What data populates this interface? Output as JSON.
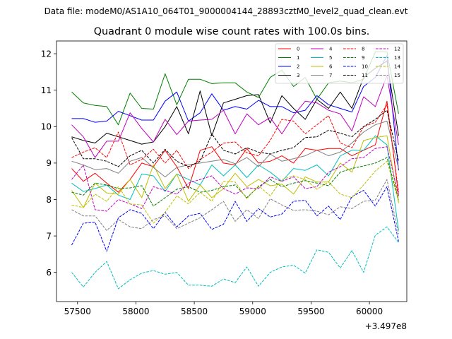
{
  "figure": {
    "suptitle": "Data file: modeM0/AS1A10_064T01_9000004144_28893cztM0_level2_quad_clean.evt"
  },
  "chart_data": {
    "type": "line",
    "title": "Quadrant 0 module wise count rates with 100.0s bins.",
    "xlabel": "",
    "ylabel": "",
    "x_offset_label": "+3.497e8",
    "xlim": [
      57320,
      60320
    ],
    "ylim": [
      5.2,
      12.35
    ],
    "xticks": [
      57500,
      58000,
      58500,
      59000,
      59500,
      60000
    ],
    "yticks": [
      6,
      7,
      8,
      9,
      10,
      11,
      12
    ],
    "grid": false,
    "legend_position": "upper-right",
    "legend_columns": 4,
    "x": [
      57450,
      57550,
      57650,
      57750,
      57850,
      57950,
      58050,
      58150,
      58250,
      58350,
      58450,
      58550,
      58650,
      58750,
      58850,
      58950,
      59050,
      59150,
      59250,
      59350,
      59450,
      59550,
      59650,
      59750,
      59850,
      59950,
      60050,
      60150,
      60250
    ],
    "series": [
      {
        "name": "0",
        "color": "#ff0000",
        "dash": "solid",
        "values": [
          8.85,
          8.5,
          8.72,
          8.45,
          8.2,
          8.55,
          9.0,
          8.9,
          9.35,
          8.9,
          8.3,
          9.35,
          9.45,
          9.0,
          8.95,
          9.4,
          9.0,
          9.05,
          9.2,
          9.0,
          9.4,
          9.35,
          9.4,
          9.4,
          9.2,
          9.35,
          9.5,
          10.7,
          8.1
        ]
      },
      {
        "name": "1",
        "color": "#008000",
        "dash": "solid",
        "values": [
          10.95,
          10.65,
          10.58,
          10.55,
          10.05,
          10.92,
          10.5,
          10.48,
          11.45,
          10.6,
          11.3,
          11.3,
          11.18,
          11.2,
          11.2,
          10.95,
          10.8,
          11.35,
          11.55,
          11.1,
          11.35,
          10.75,
          11.2,
          11.25,
          11.2,
          11.3,
          12.05,
          12.05,
          10.35
        ]
      },
      {
        "name": "2",
        "color": "#0000ff",
        "dash": "solid",
        "values": [
          10.22,
          10.22,
          10.12,
          10.15,
          10.42,
          10.3,
          10.18,
          10.18,
          10.7,
          10.95,
          10.15,
          10.38,
          10.9,
          10.45,
          10.55,
          10.48,
          10.72,
          10.55,
          10.55,
          10.38,
          10.45,
          10.85,
          10.6,
          10.5,
          10.4,
          11.1,
          11.35,
          11.95,
          8.8
        ]
      },
      {
        "name": "3",
        "color": "#000000",
        "dash": "solid",
        "values": [
          9.72,
          9.62,
          9.55,
          9.82,
          9.72,
          9.62,
          9.52,
          9.58,
          10.0,
          10.55,
          9.8,
          10.98,
          9.75,
          10.65,
          10.75,
          10.85,
          10.88,
          10.1,
          10.85,
          10.5,
          10.2,
          10.75,
          10.5,
          10.95,
          10.5,
          11.35,
          11.6,
          11.8,
          9.75
        ]
      },
      {
        "name": "4",
        "color": "#bf00bf",
        "dash": "solid",
        "values": [
          10.05,
          9.72,
          9.15,
          9.6,
          9.6,
          10.38,
          9.95,
          9.58,
          10.2,
          9.78,
          10.15,
          10.18,
          10.2,
          10.45,
          9.8,
          10.35,
          10.05,
          10.25,
          9.8,
          10.3,
          10.7,
          10.65,
          10.45,
          10.35,
          9.88,
          10.82,
          10.55,
          11.4,
          9.5
        ]
      },
      {
        "name": "5",
        "color": "#00bfbf",
        "dash": "solid",
        "values": [
          8.45,
          8.22,
          8.3,
          8.4,
          8.12,
          8.0,
          8.7,
          8.65,
          8.22,
          8.7,
          8.55,
          8.4,
          8.95,
          8.65,
          8.95,
          8.6,
          8.95,
          8.75,
          8.5,
          8.85,
          8.8,
          8.95,
          8.65,
          9.2,
          9.35,
          9.35,
          9.75,
          9.5,
          7.15
        ]
      },
      {
        "name": "6",
        "color": "#bfbf00",
        "dash": "solid",
        "values": [
          8.25,
          7.78,
          8.45,
          8.18,
          8.15,
          8.55,
          8.05,
          8.95,
          8.3,
          8.7,
          7.95,
          8.4,
          8.05,
          8.3,
          8.72,
          8.35,
          8.55,
          8.38,
          8.42,
          8.15,
          8.62,
          8.48,
          8.48,
          9.0,
          8.75,
          9.62,
          9.7,
          9.75,
          7.9
        ]
      },
      {
        "name": "7",
        "color": "#808080",
        "dash": "solid",
        "values": [
          9.05,
          8.95,
          8.82,
          8.85,
          8.72,
          9.05,
          9.15,
          8.88,
          8.62,
          8.88,
          8.95,
          9.0,
          9.05,
          9.1,
          8.98,
          9.15,
          8.9,
          9.25,
          9.05,
          9.12,
          9.2,
          9.35,
          9.2,
          9.3,
          9.55,
          9.85,
          10.05,
          10.15,
          8.85
        ]
      },
      {
        "name": "8",
        "color": "#ff0000",
        "dash": "dashed",
        "values": [
          9.15,
          9.3,
          9.42,
          9.15,
          9.85,
          8.95,
          9.1,
          9.38,
          9.0,
          9.35,
          8.85,
          9.1,
          9.3,
          9.55,
          9.58,
          9.28,
          9.2,
          9.62,
          10.2,
          10.15,
          9.8,
          10.05,
          10.3,
          9.55,
          9.42,
          10.0,
          10.12,
          10.6,
          8.2
        ]
      },
      {
        "name": "9",
        "color": "#008000",
        "dash": "dashed",
        "values": [
          8.2,
          8.12,
          8.45,
          8.4,
          8.3,
          8.32,
          8.38,
          7.82,
          8.05,
          8.28,
          8.35,
          8.2,
          8.25,
          8.35,
          8.4,
          8.05,
          8.35,
          8.55,
          8.35,
          8.45,
          8.52,
          8.45,
          8.38,
          8.75,
          8.85,
          8.92,
          9.0,
          9.15,
          8.0
        ]
      },
      {
        "name": "10",
        "color": "#0000ff",
        "dash": "dashed",
        "values": [
          6.75,
          7.35,
          7.38,
          6.58,
          7.5,
          7.72,
          7.62,
          7.2,
          7.65,
          7.25,
          7.55,
          7.62,
          7.18,
          7.32,
          7.95,
          7.4,
          7.75,
          7.52,
          7.6,
          7.95,
          7.98,
          7.55,
          7.82,
          7.45,
          8.08,
          8.25,
          7.82,
          8.35,
          6.85
        ]
      },
      {
        "name": "11",
        "color": "#000000",
        "dash": "dashed",
        "values": [
          9.7,
          9.12,
          9.12,
          9.05,
          8.9,
          9.2,
          9.35,
          9.0,
          9.38,
          9.05,
          8.9,
          9.05,
          9.8,
          9.35,
          9.25,
          9.42,
          9.3,
          9.25,
          9.35,
          9.42,
          9.7,
          9.72,
          9.9,
          9.82,
          9.72,
          10.0,
          10.2,
          10.45,
          9.05
        ]
      },
      {
        "name": "12",
        "color": "#bf00bf",
        "dash": "dashed",
        "values": [
          8.55,
          8.95,
          7.72,
          7.68,
          8.0,
          7.88,
          7.75,
          8.35,
          8.25,
          8.15,
          8.45,
          8.55,
          8.65,
          8.3,
          8.15,
          8.32,
          8.3,
          8.62,
          8.5,
          8.62,
          8.3,
          8.35,
          8.75,
          8.9,
          9.12,
          9.15,
          9.4,
          9.45,
          8.1
        ]
      },
      {
        "name": "13",
        "color": "#00bfbf",
        "dash": "dashed",
        "values": [
          6.0,
          5.6,
          6.0,
          6.3,
          5.55,
          5.8,
          5.98,
          6.05,
          5.95,
          6.0,
          5.65,
          5.65,
          5.62,
          5.82,
          5.72,
          6.15,
          5.62,
          6.0,
          6.15,
          6.2,
          5.98,
          6.62,
          6.55,
          6.12,
          6.6,
          6.0,
          7.02,
          7.25,
          6.82
        ]
      },
      {
        "name": "14",
        "color": "#bfbf00",
        "dash": "dashed",
        "values": [
          7.85,
          7.78,
          8.15,
          7.95,
          8.35,
          7.88,
          7.85,
          7.35,
          7.65,
          8.1,
          7.88,
          8.2,
          7.95,
          8.5,
          8.48,
          8.02,
          8.38,
          8.1,
          8.55,
          8.65,
          8.55,
          8.28,
          8.48,
          8.15,
          8.05,
          8.4,
          8.78,
          9.05,
          7.95
        ]
      },
      {
        "name": "15",
        "color": "#808080",
        "dash": "dashed",
        "values": [
          7.72,
          7.55,
          7.55,
          7.15,
          7.45,
          7.25,
          7.2,
          7.45,
          7.55,
          7.2,
          7.35,
          7.5,
          7.72,
          7.95,
          7.4,
          7.72,
          7.48,
          8.02,
          7.85,
          7.7,
          7.72,
          7.68,
          7.58,
          7.8,
          7.75,
          7.95,
          7.98,
          8.55,
          7.05
        ]
      }
    ]
  }
}
